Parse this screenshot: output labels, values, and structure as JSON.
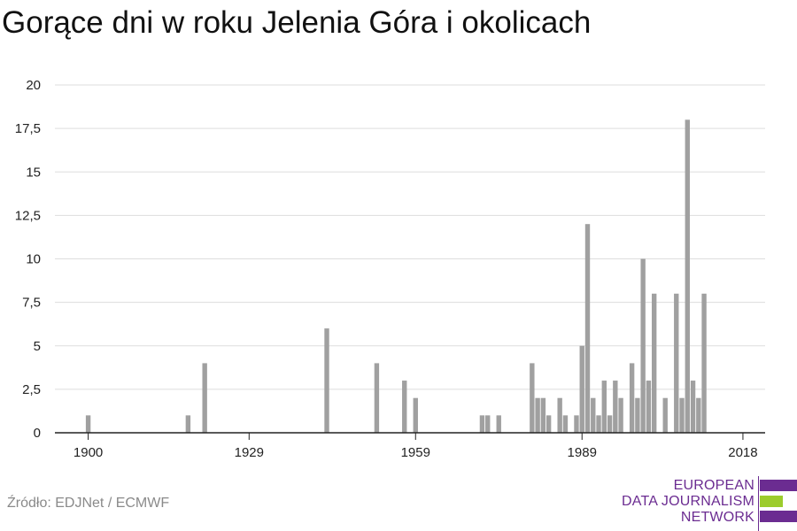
{
  "colors": {
    "bar": "#a0a0a0",
    "grid": "#dddddd",
    "axis": "#222222",
    "logo_purple": "#6b2c91",
    "logo_green": "#9ccc2c"
  },
  "footer": {
    "source": "Źródło: EDJNet / ECMWF"
  },
  "logo": {
    "line1": "EUROPEAN",
    "line2": "DATA JOURNALISM",
    "line3": "NETWORK"
  },
  "chart_data": {
    "type": "bar",
    "title": "Gorące dni w roku Jelenia Góra i okolicach",
    "xlabel": "",
    "ylabel": "",
    "ylim": [
      0,
      20
    ],
    "yticks": [
      0,
      2.5,
      5,
      7.5,
      10,
      12.5,
      15,
      17.5,
      20
    ],
    "ytick_labels": [
      "0",
      "2,5",
      "5",
      "7,5",
      "10",
      "12,5",
      "15",
      "17,5",
      "20"
    ],
    "xlim": [
      1894,
      2022
    ],
    "xticks": [
      1900,
      1929,
      1959,
      1989,
      2018
    ],
    "xtick_labels": [
      "1900",
      "1929",
      "1959",
      "1989",
      "2018"
    ],
    "grid": true,
    "legend": "none",
    "x": [
      1900,
      1918,
      1921,
      1943,
      1952,
      1957,
      1959,
      1971,
      1972,
      1974,
      1980,
      1981,
      1982,
      1983,
      1985,
      1986,
      1988,
      1989,
      1990,
      1991,
      1992,
      1993,
      1994,
      1995,
      1996,
      1998,
      1999,
      2000,
      2001,
      2002,
      2004,
      2006,
      2007,
      2008,
      2009,
      2010,
      2011,
      2012
    ],
    "values": [
      1,
      1,
      4,
      6,
      4,
      3,
      2,
      1,
      1,
      1,
      4,
      2,
      2,
      1,
      2,
      1,
      1,
      5,
      12,
      2,
      1,
      3,
      1,
      3,
      2,
      4,
      2,
      10,
      3,
      8,
      2,
      8,
      2,
      18,
      3,
      2,
      8,
      0
    ]
  }
}
